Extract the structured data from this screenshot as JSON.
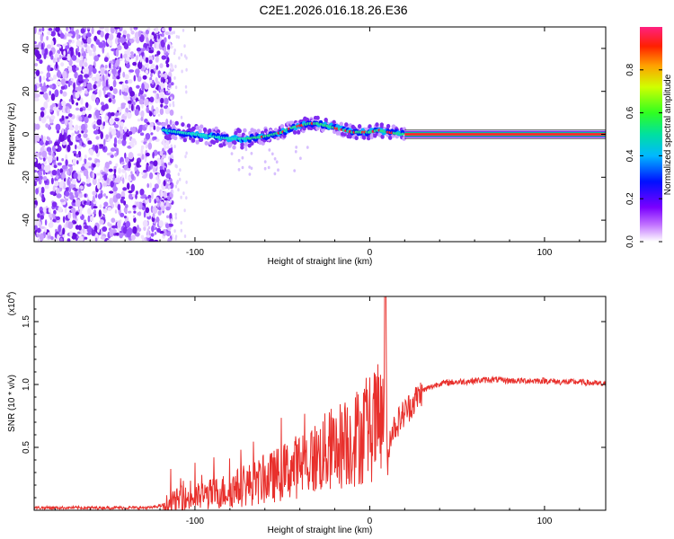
{
  "title": "C2E1.2026.016.18.26.E36",
  "chart_data": [
    {
      "type": "heatmap",
      "xlabel": "Height of straight line (km)",
      "ylabel": "Frequency (Hz)",
      "xlim": [
        -192,
        135
      ],
      "ylim": [
        -50,
        50
      ],
      "xticks": [
        -100,
        0,
        100
      ],
      "xtick_labels": [
        "-100",
        "0",
        "100"
      ],
      "yticks": [
        -40,
        -20,
        0,
        20,
        40
      ],
      "ytick_labels": [
        "-40",
        "-20",
        "0",
        "20",
        "40"
      ],
      "colorbar": {
        "label": "Normalized spectral amplitude",
        "range": [
          0,
          1
        ],
        "ticks": [
          0.0,
          0.2,
          0.4,
          0.6,
          0.8
        ],
        "tick_labels": [
          "0.0",
          "0.2",
          "0.4",
          "0.6",
          "0.8"
        ]
      },
      "signal_track": {
        "description_values": {
          "x": [
            -118,
            -110,
            -100,
            -90,
            -80,
            -70,
            -60,
            -50,
            -45,
            -40,
            -35,
            -30,
            -25,
            -20,
            -15,
            -10,
            -5,
            0,
            5,
            10,
            20,
            60,
            100,
            135
          ],
          "freq": [
            2,
            1,
            0,
            -1,
            -2,
            -2,
            -1,
            1,
            3,
            4,
            5,
            5,
            4,
            3,
            2,
            1,
            1,
            1,
            2,
            1,
            0,
            0,
            0,
            0
          ]
        },
        "noise_region_end_km": -115,
        "flat_line_start_km": 20
      }
    },
    {
      "type": "line",
      "xlabel": "Height of straight line (km)",
      "ylabel": "SNR (10 * v/v)",
      "y_multiplier_label": "(x10",
      "y_multiplier_exp": "4",
      "xlim": [
        -192,
        135
      ],
      "ylim": [
        0,
        1.7
      ],
      "xticks": [
        -100,
        0,
        100
      ],
      "xtick_labels": [
        "-100",
        "0",
        "100"
      ],
      "yticks": [
        0.5,
        1.0,
        1.5
      ],
      "ytick_labels": [
        "0.5",
        "1.0",
        "1.5"
      ],
      "series": [
        {
          "name": "SNR",
          "color": "#e8302c",
          "x": [
            -192,
            -160,
            -125,
            -115,
            -110,
            -100,
            -90,
            -80,
            -70,
            -60,
            -50,
            -40,
            -30,
            -20,
            -10,
            0,
            5,
            8,
            9,
            10,
            12,
            15,
            20,
            25,
            30,
            40,
            50,
            60,
            70,
            80,
            90,
            100,
            110,
            120,
            135
          ],
          "y": [
            0.02,
            0.02,
            0.02,
            0.05,
            0.08,
            0.1,
            0.13,
            0.16,
            0.2,
            0.24,
            0.3,
            0.36,
            0.42,
            0.5,
            0.56,
            0.65,
            0.7,
            0.75,
            1.7,
            0.35,
            0.62,
            0.68,
            0.78,
            0.86,
            0.95,
            1.01,
            1.02,
            1.03,
            1.04,
            1.03,
            1.03,
            1.03,
            1.02,
            1.02,
            1.0
          ]
        }
      ]
    }
  ],
  "colors": {
    "line": "#e8302c",
    "signal": "#ff2a2a"
  }
}
